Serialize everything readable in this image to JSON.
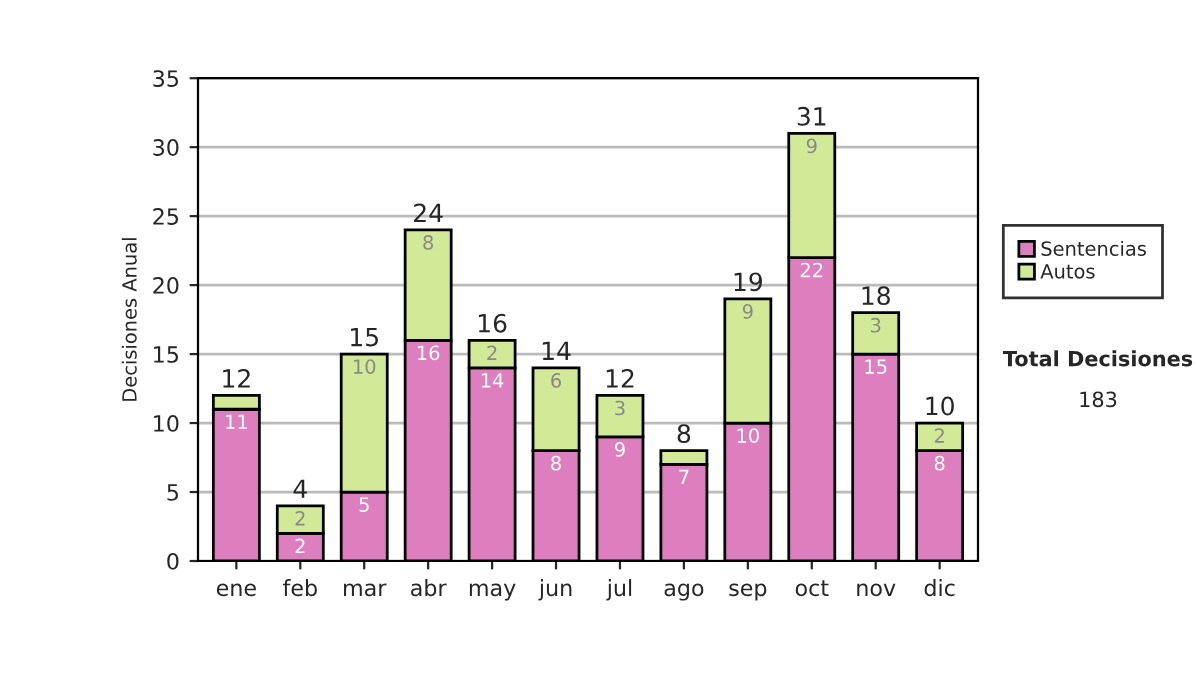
{
  "chart_data": {
    "type": "bar",
    "stacked": true,
    "ylabel": "Decisiones Anual",
    "categories": [
      "ene",
      "feb",
      "mar",
      "abr",
      "may",
      "jun",
      "jul",
      "ago",
      "sep",
      "oct",
      "nov",
      "dic"
    ],
    "series": [
      {
        "name": "Sentencias",
        "color": "#dd7fbf",
        "values": [
          11,
          2,
          5,
          16,
          14,
          8,
          9,
          7,
          10,
          22,
          15,
          8
        ],
        "value_labels": [
          "11",
          "2",
          "5",
          "16",
          "14",
          "8",
          "9",
          "7",
          "10",
          "22",
          "15",
          "8"
        ]
      },
      {
        "name": "Autos",
        "color": "#d2ea98",
        "values": [
          1,
          2,
          10,
          8,
          2,
          6,
          3,
          1,
          9,
          9,
          3,
          2
        ],
        "value_labels": [
          null,
          "2",
          "10",
          "8",
          "2",
          "6",
          "3",
          null,
          "9",
          "9",
          "3",
          "2"
        ]
      }
    ],
    "totals": [
      "12",
      "4",
      "15",
      "24",
      "16",
      "14",
      "12",
      "8",
      "19",
      "31",
      "18",
      "10"
    ],
    "ylim": [
      0,
      35
    ],
    "yticks": [
      0,
      5,
      10,
      15,
      20,
      25,
      30,
      35
    ],
    "grid": "y",
    "legend": "right",
    "annotations": [
      "Total Decisiones",
      "183"
    ]
  }
}
